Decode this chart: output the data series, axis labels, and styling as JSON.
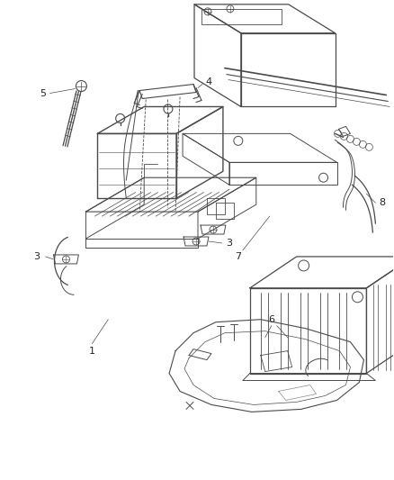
{
  "background_color": "#ffffff",
  "line_color": "#4a4a4a",
  "label_color": "#222222",
  "fig_width": 4.38,
  "fig_height": 5.33,
  "dpi": 100,
  "lw": 0.75
}
